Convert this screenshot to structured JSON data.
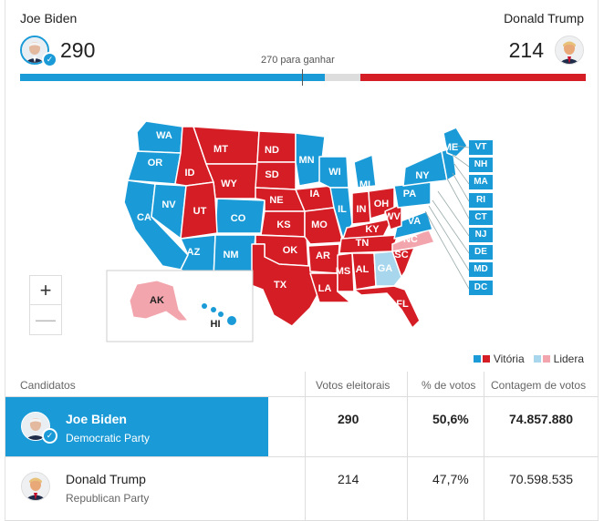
{
  "header": {
    "left": {
      "name": "Joe Biden",
      "electoral_votes": "290"
    },
    "right": {
      "name": "Donald Trump",
      "electoral_votes": "214"
    },
    "goal_label": "270 para ganhar",
    "progress": {
      "biden_votes": 290,
      "trump_votes": 214,
      "total": 538
    },
    "colors": {
      "biden": "#1a9bd7",
      "trump": "#d51d26",
      "biden_leading": "#a8d6ed",
      "trump_leading": "#f2a5ac"
    }
  },
  "map": {
    "states_main": [
      "WA",
      "OR",
      "CA",
      "NV",
      "ID",
      "MT",
      "WY",
      "UT",
      "AZ",
      "CO",
      "NM",
      "ND",
      "SD",
      "NE",
      "KS",
      "OK",
      "TX",
      "MN",
      "IA",
      "MO",
      "AR",
      "LA",
      "WI",
      "IL",
      "MI",
      "IN",
      "OH",
      "KY",
      "TN",
      "MS",
      "AL",
      "GA",
      "FL",
      "SC",
      "NC",
      "VA",
      "WV",
      "PA",
      "NY",
      "ME"
    ],
    "states_small": [
      "VT",
      "NH",
      "MA",
      "RI",
      "CT",
      "NJ",
      "DE",
      "MD",
      "DC"
    ],
    "alaska": "AK",
    "hawaii": "HI",
    "zoom_in": "+",
    "zoom_out": "—"
  },
  "legend": {
    "victory": "Vitória",
    "leading": "Lidera"
  },
  "table": {
    "headers": {
      "candidates": "Candidatos",
      "electoral": "Votos eleitorais",
      "pct": "% de votos",
      "count": "Contagem de votos"
    },
    "rows": [
      {
        "name": "Joe Biden",
        "party": "Democratic Party",
        "electoral": "290",
        "pct": "50,6%",
        "count": "74.857.880"
      },
      {
        "name": "Donald Trump",
        "party": "Republican Party",
        "electoral": "214",
        "pct": "47,7%",
        "count": "70.598.535"
      }
    ]
  }
}
